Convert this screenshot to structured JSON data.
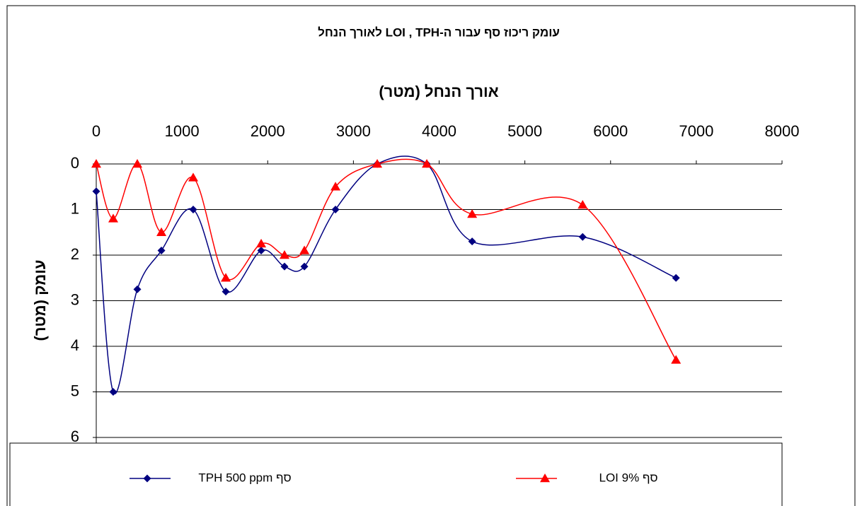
{
  "chart_data": {
    "type": "scatter-smooth",
    "title": "עומק ריכוז סף עבור ה-LOI , TPH לאורך הנחל",
    "x_label": "אורך הנחל (מטר)",
    "y_label": "עומק (מטר)",
    "x": [
      0,
      198,
      479,
      760,
      1131,
      1511,
      1924,
      2196,
      2428,
      2791,
      3278,
      3856,
      4385,
      5674,
      6763
    ],
    "series": [
      {
        "name": "סף TPH 500 ppm",
        "color": "#000080",
        "marker": "diamond",
        "values": [
          0.6,
          5,
          2.75,
          1.9,
          1,
          2.8,
          1.9,
          2.25,
          2.25,
          1,
          0,
          0,
          1.7,
          1.6,
          2.5
        ]
      },
      {
        "name": "סף LOI 9%",
        "color": "#ff0000",
        "marker": "triangle",
        "values": [
          0,
          1.2,
          0,
          1.5,
          0.3,
          2.5,
          1.75,
          2,
          1.9,
          0.5,
          0,
          0,
          1.1,
          0.9,
          4.3
        ]
      }
    ],
    "xlim": [
      0,
      8000
    ],
    "xticks": [
      0,
      1000,
      2000,
      3000,
      4000,
      5000,
      6000,
      7000,
      8000
    ],
    "ylim": [
      0,
      6
    ],
    "yticks": [
      0,
      1,
      2,
      3,
      4,
      5,
      6
    ],
    "y_reversed": true,
    "x_axis_top": true,
    "grid": true
  }
}
